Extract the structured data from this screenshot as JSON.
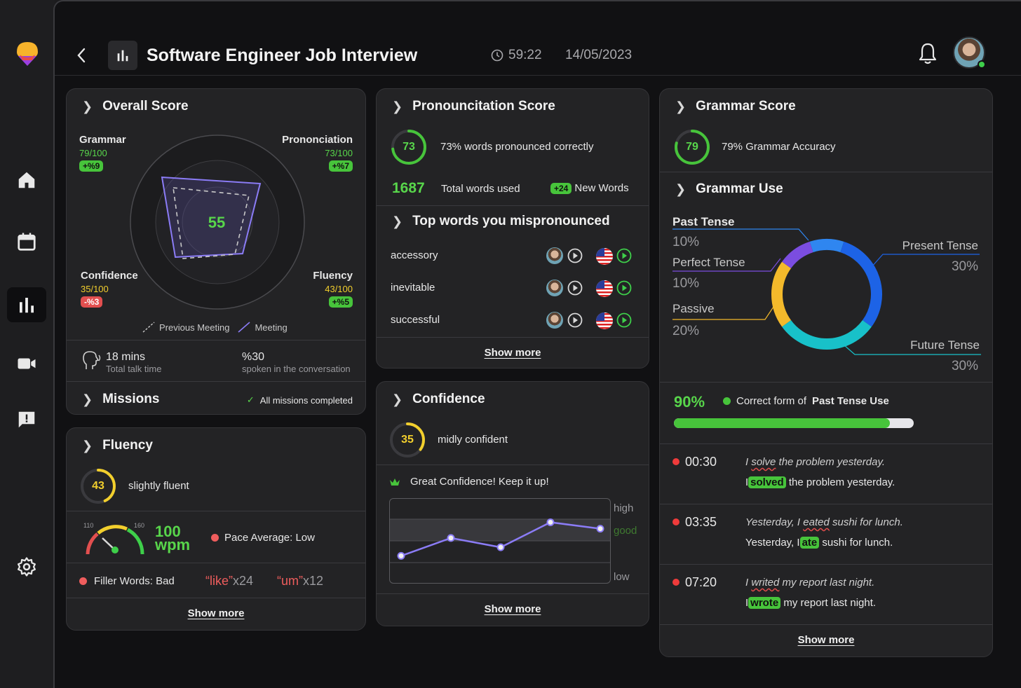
{
  "header": {
    "title": "Software Engineer Job Interview",
    "duration": "59:22",
    "date": "14/05/2023"
  },
  "sidebar": {
    "items": [
      {
        "icon": "home-icon"
      },
      {
        "icon": "calendar-icon"
      },
      {
        "icon": "bar-chart-icon",
        "active": true
      },
      {
        "icon": "video-icon"
      },
      {
        "icon": "feedback-icon"
      },
      {
        "icon": "settings-icon"
      }
    ]
  },
  "overall": {
    "title": "Overall Score",
    "score": "55",
    "grammar": {
      "label": "Grammar",
      "value": "79/100",
      "delta": "+%9"
    },
    "pronunciation": {
      "label": "Prononciation",
      "value": "73/100",
      "delta": "+%7"
    },
    "confidence": {
      "label": "Confidence",
      "value": "35/100",
      "delta": "-%3"
    },
    "fluency": {
      "label": "Fluency",
      "value": "43/100",
      "delta": "+%5"
    },
    "legend_prev": "Previous Meeting",
    "legend_cur": "Meeting",
    "talk_time": "18 mins",
    "talk_time_label": "Total talk time",
    "spoken": "%30",
    "spoken_label": "spoken in the conversation",
    "missions_title": "Missions",
    "missions_status": "All missions completed"
  },
  "fluency": {
    "title": "Fluency",
    "score": "43",
    "score_fraction": 0.43,
    "label": "slightly fluent",
    "gauge_min": "110",
    "gauge_max": "160",
    "wpm_value": "100",
    "wpm_unit": "wpm",
    "pace": "Pace Average: Low",
    "filler": "Filler Words: Bad",
    "filler1_word": "“like”",
    "filler1_count": "x24",
    "filler2_word": "“um”",
    "filler2_count": "x12",
    "show_more": "Show more"
  },
  "pronunciation": {
    "title": "Pronouncitation Score",
    "score": "73",
    "score_fraction": 0.73,
    "summary": "73% words pronounced correctly",
    "total_words": "1687",
    "total_words_label": "Total words used",
    "new_words_delta": "+24",
    "new_words_label": "New Words",
    "mis_title": "Top words you mispronounced",
    "words": [
      "accessory",
      "inevitable",
      "successful"
    ],
    "show_more": "Show more"
  },
  "confidence": {
    "title": "Confidence",
    "score": "35",
    "score_fraction": 0.35,
    "label": "midly confident",
    "message": "Great Confidence! Keep it up!",
    "show_more": "Show more",
    "chart_data": {
      "type": "line",
      "x": [
        1,
        2,
        3,
        4,
        5
      ],
      "values": [
        0.3,
        0.55,
        0.42,
        0.77,
        0.68
      ],
      "y_bands": [
        "high",
        "good",
        "low"
      ]
    }
  },
  "grammar": {
    "title": "Grammar Score",
    "score": "79",
    "score_fraction": 0.79,
    "accuracy": "79% Grammar Accuracy",
    "use_title": "Grammar Use",
    "chart_data": {
      "type": "pie",
      "labels": [
        "Past Tense",
        "Present Tense",
        "Future Tense",
        "Passive",
        "Perfect Tense"
      ],
      "values": [
        10,
        30,
        30,
        20,
        10
      ],
      "colors": [
        "#2f86f0",
        "#1d63e6",
        "#18c1c9",
        "#f3b92b",
        "#7b4de0"
      ]
    },
    "slices": [
      {
        "name": "Past Tense",
        "pct": "10%"
      },
      {
        "name": "Perfect Tense",
        "pct": "10%"
      },
      {
        "name": "Passive",
        "pct": "20%"
      },
      {
        "name": "Present Tense",
        "pct": "30%"
      },
      {
        "name": "Future Tense",
        "pct": "30%"
      }
    ],
    "correct_pct": "90%",
    "correct_fraction": 0.9,
    "correct_prefix": "Correct form of",
    "correct_focus": "Past Tense Use",
    "mistakes": [
      {
        "time": "00:30",
        "wrong_a": "I ",
        "wrong_word": "solve",
        "wrong_b": " the problem yesterday.",
        "fix_a": "I",
        "fix_word": "solved",
        "fix_b": " the problem yesterday."
      },
      {
        "time": "03:35",
        "wrong_a": "Yesterday, I ",
        "wrong_word": "eated",
        "wrong_b": " sushi for lunch.",
        "fix_a": "Yesterday, I",
        "fix_word": "ate",
        "fix_b": " sushi for lunch."
      },
      {
        "time": "07:20",
        "wrong_a": "I ",
        "wrong_word": "writed",
        "wrong_b": " my report last night.",
        "fix_a": "I",
        "fix_word": "wrote",
        "fix_b": " my report last night."
      }
    ],
    "show_more": "Show more"
  },
  "colors": {
    "green": "#58d64b",
    "yellow": "#f2cf2d",
    "red": "#ef5d5d",
    "purple": "#8b7cf6",
    "bg": "#111113",
    "card": "#232325"
  }
}
